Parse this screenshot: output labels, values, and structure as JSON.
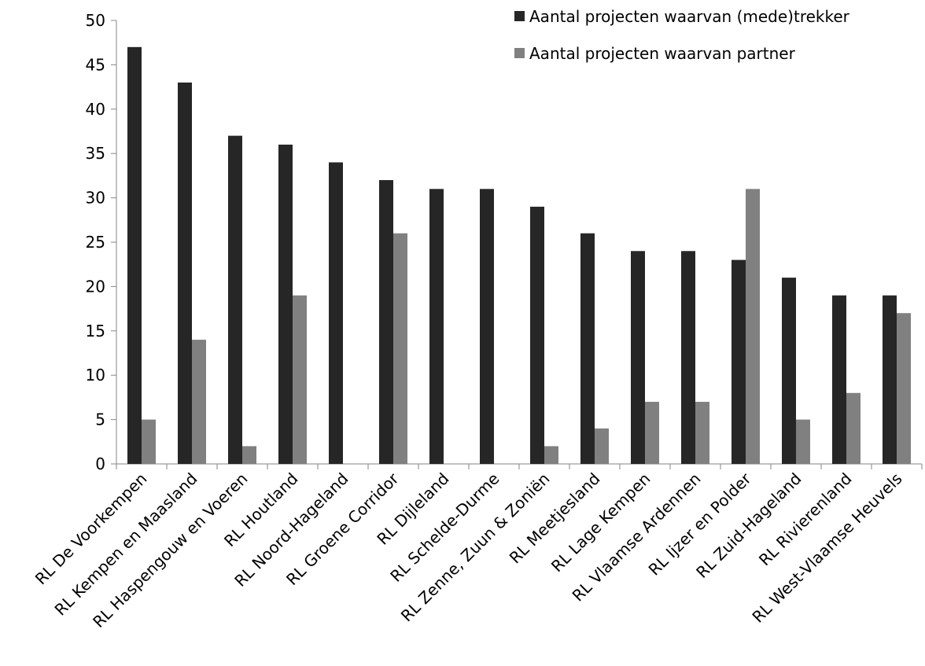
{
  "chart_data": {
    "type": "bar",
    "title": "",
    "xlabel": "",
    "ylabel": "",
    "ylim": [
      0,
      50
    ],
    "yticks": [
      0,
      5,
      10,
      15,
      20,
      25,
      30,
      35,
      40,
      45,
      50
    ],
    "grid": false,
    "legend_position": "top-right",
    "categories": [
      "RL De Voorkempen",
      "RL Kempen en Maasland",
      "RL Haspengouw en Voeren",
      "RL Houtland",
      "RL Noord-Hageland",
      "RL Groene Corridor",
      "RL Dijleland",
      "RL Schelde-Durme",
      "RL Zenne, Zuun & Zoniën",
      "RL Meetjesland",
      "RL Lage Kempen",
      "RL Vlaamse Ardennen",
      "RL Ijzer en Polder",
      "RL Zuid-Hageland",
      "RL Rivierenland",
      "RL West-Vlaamse Heuvels"
    ],
    "series": [
      {
        "name": "Aantal projecten waarvan (mede)trekker",
        "color": "#262626",
        "values": [
          47,
          43,
          37,
          36,
          34,
          32,
          31,
          31,
          29,
          26,
          24,
          24,
          23,
          21,
          19,
          19
        ]
      },
      {
        "name": "Aantal projecten waarvan partner",
        "color": "#808080",
        "values": [
          5,
          14,
          2,
          19,
          0,
          26,
          0,
          0,
          2,
          4,
          7,
          7,
          31,
          5,
          8,
          17
        ]
      }
    ]
  }
}
